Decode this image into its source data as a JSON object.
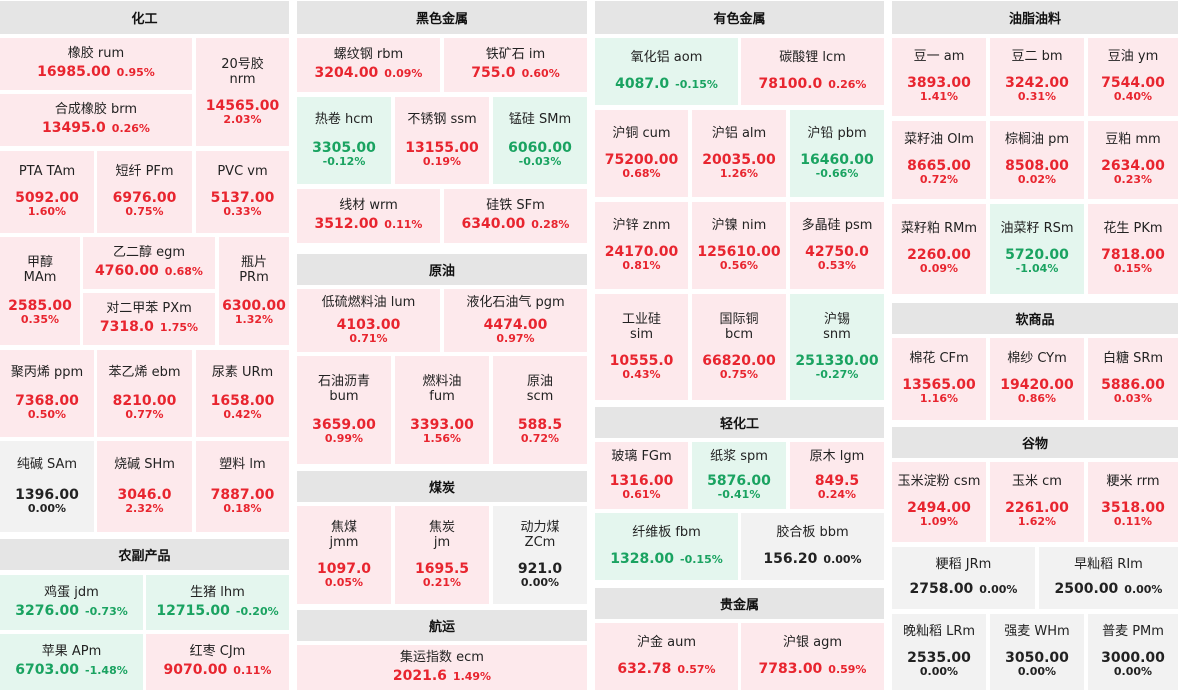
{
  "sections": {
    "chemical": "化工",
    "ferrous": "黑色金属",
    "nonferrous": "有色金属",
    "oils": "油脂油料",
    "crude": "原油",
    "coal": "煤炭",
    "agri": "农副产品",
    "light": "轻化工",
    "softs": "软商品",
    "grains": "谷物",
    "shipping": "航运",
    "precious": "贵金属"
  },
  "tiles": {
    "rum": {
      "name": "橡胶 rum",
      "price": "16985.00",
      "pct": "0.95%"
    },
    "nrm": {
      "name": "20号胶",
      "name2": "nrm",
      "price": "14565.00",
      "pct": "2.03%"
    },
    "brm": {
      "name": "合成橡胶 brm",
      "price": "13495.0",
      "pct": "0.26%"
    },
    "tam": {
      "name": "PTA TAm",
      "price": "5092.00",
      "pct": "1.60%"
    },
    "pfm": {
      "name": "短纤 PFm",
      "price": "6976.00",
      "pct": "0.75%"
    },
    "vm": {
      "name": "PVC vm",
      "price": "5137.00",
      "pct": "0.33%"
    },
    "mam": {
      "name": "甲醇",
      "name2": "MAm",
      "price": "2585.00",
      "pct": "0.35%"
    },
    "egm": {
      "name": "乙二醇 egm",
      "price": "4760.00",
      "pct": "0.68%"
    },
    "prm": {
      "name": "瓶片",
      "name2": "PRm",
      "price": "6300.00",
      "pct": "1.32%"
    },
    "pxm": {
      "name": "对二甲苯 PXm",
      "price": "7318.0",
      "pct": "1.75%"
    },
    "ppm": {
      "name": "聚丙烯 ppm",
      "price": "7368.00",
      "pct": "0.50%"
    },
    "ebm": {
      "name": "苯乙烯 ebm",
      "price": "8210.00",
      "pct": "0.77%"
    },
    "urm": {
      "name": "尿素 URm",
      "price": "1658.00",
      "pct": "0.42%"
    },
    "sam": {
      "name": "纯碱 SAm",
      "price": "1396.00",
      "pct": "0.00%"
    },
    "shm": {
      "name": "烧碱 SHm",
      "price": "3046.0",
      "pct": "2.32%"
    },
    "lm": {
      "name": "塑料 lm",
      "price": "7887.00",
      "pct": "0.18%"
    },
    "jdm": {
      "name": "鸡蛋 jdm",
      "price": "3276.00",
      "pct": "-0.73%"
    },
    "lhm": {
      "name": "生猪 lhm",
      "price": "12715.00",
      "pct": "-0.20%"
    },
    "apm": {
      "name": "苹果 APm",
      "price": "6703.00",
      "pct": "-1.48%"
    },
    "cjm": {
      "name": "红枣 CJm",
      "price": "9070.00",
      "pct": "0.11%"
    },
    "rbm": {
      "name": "螺纹钢 rbm",
      "price": "3204.00",
      "pct": "0.09%"
    },
    "im": {
      "name": "铁矿石 im",
      "price": "755.0",
      "pct": "0.60%"
    },
    "hcm": {
      "name": "热卷 hcm",
      "price": "3305.00",
      "pct": "-0.12%"
    },
    "ssm": {
      "name": "不锈钢 ssm",
      "price": "13155.00",
      "pct": "0.19%"
    },
    "smm": {
      "name": "锰硅 SMm",
      "price": "6060.00",
      "pct": "-0.03%"
    },
    "wrm": {
      "name": "线材 wrm",
      "price": "3512.00",
      "pct": "0.11%"
    },
    "sfm": {
      "name": "硅铁 SFm",
      "price": "6340.00",
      "pct": "0.28%"
    },
    "lum": {
      "name": "低硫燃料油 lum",
      "price": "4103.00",
      "pct": "0.71%"
    },
    "pgm": {
      "name": "液化石油气 pgm",
      "price": "4474.00",
      "pct": "0.97%"
    },
    "bum": {
      "name": "石油沥青",
      "name2": "bum",
      "price": "3659.00",
      "pct": "0.99%"
    },
    "fum": {
      "name": "燃料油",
      "name2": "fum",
      "price": "3393.00",
      "pct": "1.56%"
    },
    "scm": {
      "name": "原油",
      "name2": "scm",
      "price": "588.5",
      "pct": "0.72%"
    },
    "jmm": {
      "name": "焦煤",
      "name2": "jmm",
      "price": "1097.0",
      "pct": "0.05%"
    },
    "jm": {
      "name": "焦炭",
      "name2": "jm",
      "price": "1695.5",
      "pct": "0.21%"
    },
    "zcm": {
      "name": "动力煤",
      "name2": "ZCm",
      "price": "921.0",
      "pct": "0.00%"
    },
    "ecm": {
      "name": "集运指数 ecm",
      "price": "2021.6",
      "pct": "1.49%"
    },
    "aom": {
      "name": "氧化铝 aom",
      "price": "4087.0",
      "pct": "-0.15%"
    },
    "lcm": {
      "name": "碳酸锂 lcm",
      "price": "78100.0",
      "pct": "0.26%"
    },
    "cum": {
      "name": "沪铜 cum",
      "price": "75200.00",
      "pct": "0.68%"
    },
    "alm": {
      "name": "沪铝 alm",
      "price": "20035.00",
      "pct": "1.26%"
    },
    "pbm": {
      "name": "沪铅 pbm",
      "price": "16460.00",
      "pct": "-0.66%"
    },
    "znm": {
      "name": "沪锌 znm",
      "price": "24170.00",
      "pct": "0.81%"
    },
    "nim": {
      "name": "沪镍 nim",
      "price": "125610.00",
      "pct": "0.56%"
    },
    "psm": {
      "name": "多晶硅 psm",
      "price": "42750.0",
      "pct": "0.53%"
    },
    "sim": {
      "name": "工业硅",
      "name2": "sim",
      "price": "10555.0",
      "pct": "0.43%"
    },
    "bcm": {
      "name": "国际铜",
      "name2": "bcm",
      "price": "66820.00",
      "pct": "0.75%"
    },
    "snm": {
      "name": "沪锡",
      "name2": "snm",
      "price": "251330.00",
      "pct": "-0.27%"
    },
    "fgm": {
      "name": "玻璃 FGm",
      "price": "1316.00",
      "pct": "0.61%"
    },
    "spm": {
      "name": "纸浆 spm",
      "price": "5876.00",
      "pct": "-0.41%"
    },
    "lgm": {
      "name": "原木 lgm",
      "price": "849.5",
      "pct": "0.24%"
    },
    "fbm": {
      "name": "纤维板 fbm",
      "price": "1328.00",
      "pct": "-0.15%"
    },
    "bbm": {
      "name": "胶合板 bbm",
      "price": "156.20",
      "pct": "0.00%"
    },
    "aum": {
      "name": "沪金 aum",
      "price": "632.78",
      "pct": "0.57%"
    },
    "agm": {
      "name": "沪银 agm",
      "price": "7783.00",
      "pct": "0.59%"
    },
    "am": {
      "name": "豆一 am",
      "price": "3893.00",
      "pct": "1.41%"
    },
    "bm": {
      "name": "豆二 bm",
      "price": "3242.00",
      "pct": "0.31%"
    },
    "ym": {
      "name": "豆油 ym",
      "price": "7544.00",
      "pct": "0.40%"
    },
    "olm": {
      "name": "菜籽油 OIm",
      "price": "8665.00",
      "pct": "0.72%"
    },
    "pm": {
      "name": "棕榈油 pm",
      "price": "8508.00",
      "pct": "0.02%"
    },
    "mm": {
      "name": "豆粕 mm",
      "price": "2634.00",
      "pct": "0.23%"
    },
    "rmm": {
      "name": "菜籽粕 RMm",
      "price": "2260.00",
      "pct": "0.09%"
    },
    "rsm": {
      "name": "油菜籽 RSm",
      "price": "5720.00",
      "pct": "-1.04%"
    },
    "pkm": {
      "name": "花生 PKm",
      "price": "7818.00",
      "pct": "0.15%"
    },
    "cfm": {
      "name": "棉花 CFm",
      "price": "13565.00",
      "pct": "1.16%"
    },
    "cym": {
      "name": "棉纱 CYm",
      "price": "19420.00",
      "pct": "0.86%"
    },
    "srm": {
      "name": "白糖 SRm",
      "price": "5886.00",
      "pct": "0.03%"
    },
    "csm": {
      "name": "玉米淀粉 csm",
      "price": "2494.00",
      "pct": "1.09%"
    },
    "cm": {
      "name": "玉米 cm",
      "price": "2261.00",
      "pct": "1.62%"
    },
    "rrm": {
      "name": "粳米 rrm",
      "price": "3518.00",
      "pct": "0.11%"
    },
    "jrm": {
      "name": "粳稻 JRm",
      "price": "2758.00",
      "pct": "0.00%"
    },
    "rim": {
      "name": "早籼稻 RIm",
      "price": "2500.00",
      "pct": "0.00%"
    },
    "lrm": {
      "name": "晚籼稻 LRm",
      "price": "2535.00",
      "pct": "0.00%"
    },
    "whm": {
      "name": "强麦 WHm",
      "price": "3050.00",
      "pct": "0.00%"
    },
    "pmm": {
      "name": "普麦 PMm",
      "price": "3000.00",
      "pct": "0.00%"
    }
  },
  "colors": {
    "up": "#e8252f",
    "down": "#1aa361",
    "flat": "#222222",
    "up_bg": "#fde9ec",
    "down_bg": "#e4f6ee",
    "flat_bg": "#f2f2f2",
    "header_bg": "#e5e5e5"
  }
}
